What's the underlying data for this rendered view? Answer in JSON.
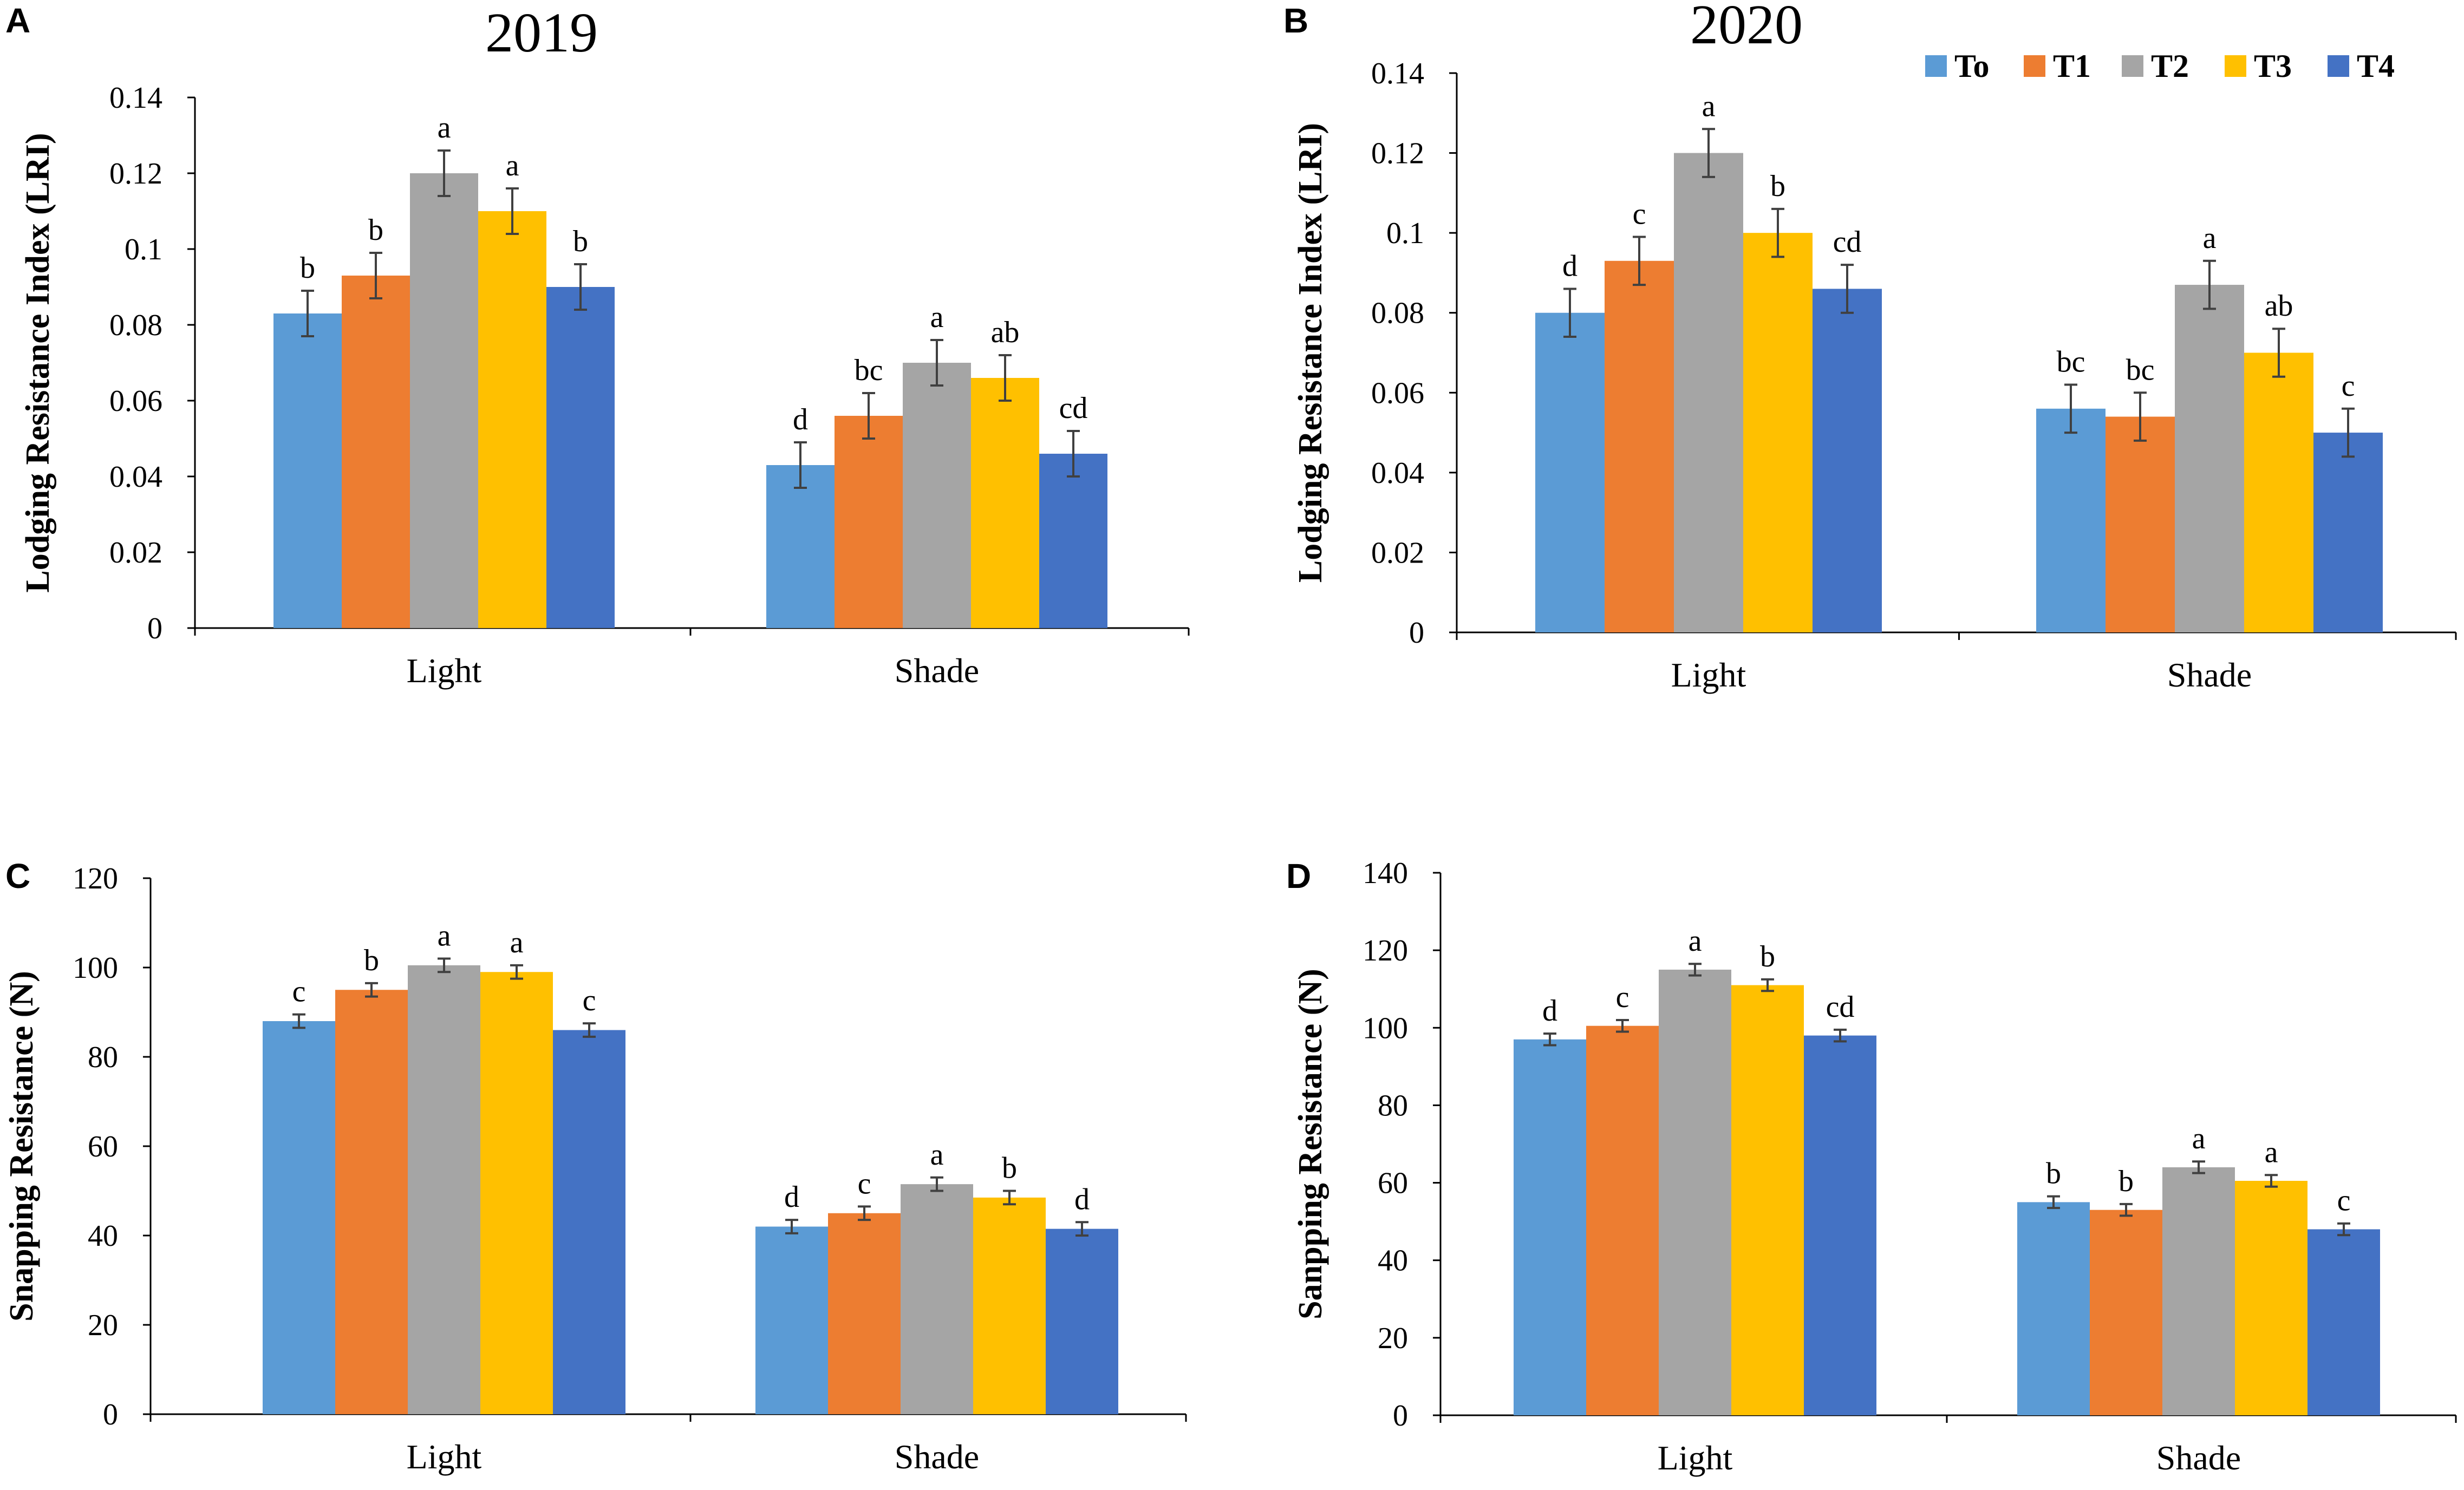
{
  "colors": {
    "To": "#5B9BD5",
    "T1": "#ED7D31",
    "T2": "#A5A5A5",
    "T3": "#FFC000",
    "T4": "#4472C4"
  },
  "legend": [
    "To",
    "T1",
    "T2",
    "T3",
    "T4"
  ],
  "chart_data": [
    {
      "panel": "A",
      "type": "bar",
      "title": "2019",
      "ylabel": "Lodging Resistance Index (LRI)",
      "xlabel": "",
      "categories": [
        "Light",
        "Shade"
      ],
      "ylim": [
        0,
        0.14
      ],
      "yticks": [
        "0",
        "0.02",
        "0.04",
        "0.06",
        "0.08",
        "0.1",
        "0.12",
        "0.14"
      ],
      "series": [
        {
          "name": "To",
          "values": [
            0.083,
            0.043
          ],
          "errors": [
            0.006,
            0.006
          ],
          "letters": [
            "b",
            "d"
          ]
        },
        {
          "name": "T1",
          "values": [
            0.093,
            0.056
          ],
          "errors": [
            0.006,
            0.006
          ],
          "letters": [
            "b",
            "bc"
          ]
        },
        {
          "name": "T2",
          "values": [
            0.12,
            0.07
          ],
          "errors": [
            0.006,
            0.006
          ],
          "letters": [
            "a",
            "a"
          ]
        },
        {
          "name": "T3",
          "values": [
            0.11,
            0.066
          ],
          "errors": [
            0.006,
            0.006
          ],
          "letters": [
            "a",
            "ab"
          ]
        },
        {
          "name": "T4",
          "values": [
            0.09,
            0.046
          ],
          "errors": [
            0.006,
            0.006
          ],
          "letters": [
            "b",
            "cd"
          ]
        }
      ]
    },
    {
      "panel": "B",
      "type": "bar",
      "title": "2020",
      "ylabel": "Lodging Resistance Index (LRI)",
      "xlabel": "",
      "categories": [
        "Light",
        "Shade"
      ],
      "ylim": [
        0,
        0.14
      ],
      "yticks": [
        "0",
        "0.02",
        "0.04",
        "0.06",
        "0.08",
        "0.1",
        "0.12",
        "0.14"
      ],
      "series": [
        {
          "name": "To",
          "values": [
            0.08,
            0.056
          ],
          "errors": [
            0.006,
            0.006
          ],
          "letters": [
            "d",
            "bc"
          ]
        },
        {
          "name": "T1",
          "values": [
            0.093,
            0.054
          ],
          "errors": [
            0.006,
            0.006
          ],
          "letters": [
            "c",
            "bc"
          ]
        },
        {
          "name": "T2",
          "values": [
            0.12,
            0.087
          ],
          "errors": [
            0.006,
            0.006
          ],
          "letters": [
            "a",
            "a"
          ]
        },
        {
          "name": "T3",
          "values": [
            0.1,
            0.07
          ],
          "errors": [
            0.006,
            0.006
          ],
          "letters": [
            "b",
            "ab"
          ]
        },
        {
          "name": "T4",
          "values": [
            0.086,
            0.05
          ],
          "errors": [
            0.006,
            0.006
          ],
          "letters": [
            "cd",
            "c"
          ]
        }
      ]
    },
    {
      "panel": "C",
      "type": "bar",
      "title": "",
      "ylabel": "Snapping Resistance  (N)",
      "xlabel": "",
      "categories": [
        "Light",
        "Shade"
      ],
      "ylim": [
        0,
        120
      ],
      "yticks": [
        "0",
        "20",
        "40",
        "60",
        "80",
        "100",
        "120"
      ],
      "series": [
        {
          "name": "To",
          "values": [
            88,
            42
          ],
          "errors": [
            1.5,
            1.5
          ],
          "letters": [
            "c",
            "d"
          ]
        },
        {
          "name": "T1",
          "values": [
            95,
            45
          ],
          "errors": [
            1.5,
            1.5
          ],
          "letters": [
            "b",
            "c"
          ]
        },
        {
          "name": "T2",
          "values": [
            100.5,
            51.5
          ],
          "errors": [
            1.5,
            1.5
          ],
          "letters": [
            "a",
            "a"
          ]
        },
        {
          "name": "T3",
          "values": [
            99,
            48.5
          ],
          "errors": [
            1.5,
            1.5
          ],
          "letters": [
            "a",
            "b"
          ]
        },
        {
          "name": "T4",
          "values": [
            86,
            41.5
          ],
          "errors": [
            1.5,
            1.5
          ],
          "letters": [
            "c",
            "d"
          ]
        }
      ]
    },
    {
      "panel": "D",
      "type": "bar",
      "title": "",
      "ylabel": "Sanpping Resistance (N)",
      "xlabel": "",
      "categories": [
        "Light",
        "Shade"
      ],
      "ylim": [
        0,
        140
      ],
      "yticks": [
        "0",
        "20",
        "40",
        "60",
        "80",
        "100",
        "120",
        "140"
      ],
      "series": [
        {
          "name": "To",
          "values": [
            97,
            55
          ],
          "errors": [
            1.5,
            1.5
          ],
          "letters": [
            "d",
            "b"
          ]
        },
        {
          "name": "T1",
          "values": [
            100.5,
            53
          ],
          "errors": [
            1.5,
            1.5
          ],
          "letters": [
            "c",
            "b"
          ]
        },
        {
          "name": "T2",
          "values": [
            115,
            64
          ],
          "errors": [
            1.5,
            1.5
          ],
          "letters": [
            "a",
            "a"
          ]
        },
        {
          "name": "T3",
          "values": [
            111,
            60.5
          ],
          "errors": [
            1.5,
            1.5
          ],
          "letters": [
            "b",
            "a"
          ]
        },
        {
          "name": "T4",
          "values": [
            98,
            48
          ],
          "errors": [
            1.5,
            1.5
          ],
          "letters": [
            "cd",
            "c"
          ]
        }
      ]
    }
  ]
}
